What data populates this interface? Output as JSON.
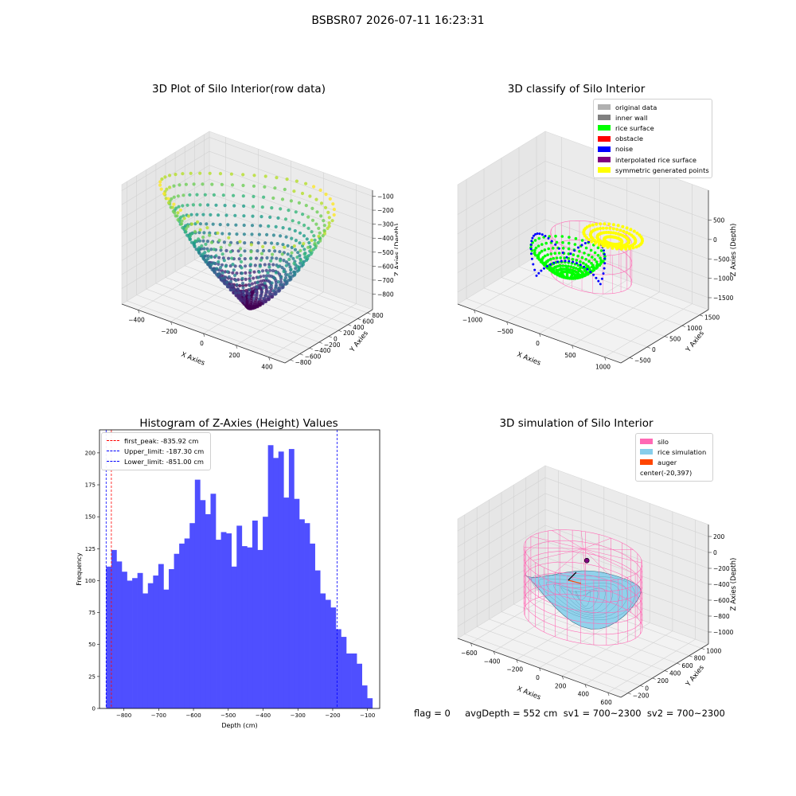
{
  "suptitle": "BSBSR07 2026-07-11 16:23:31",
  "chart_data": [
    {
      "type": "scatter",
      "title": "3D Plot of Silo Interior(row data)",
      "xlabel": "X Axies",
      "ylabel": "Y Axies",
      "zlabel": "Z Axies (Depth)",
      "xticks": [
        "−400",
        "−200",
        "0",
        "200",
        "400"
      ],
      "yticks": [
        "−800",
        "−600",
        "−400",
        "−200",
        "0",
        "200",
        "400",
        "600",
        "800"
      ],
      "zticks": [
        "−800",
        "−700",
        "−600",
        "−500",
        "−400",
        "−300",
        "−200",
        "−100"
      ],
      "colormap": "viridis",
      "description_values": {
        "z_range": [
          -850,
          -100
        ]
      }
    },
    {
      "type": "scatter",
      "title": "3D classify of Silo Interior",
      "xlabel": "X Axies",
      "ylabel": "Y Axies",
      "zlabel": "Z Axies (Depth)",
      "xticks": [
        "−1000",
        "−500",
        "0",
        "500",
        "1000"
      ],
      "yticks": [
        "−500",
        "0",
        "500",
        "1000",
        "1500"
      ],
      "zticks": [
        "−1500",
        "−1000",
        "−500",
        "0",
        "500"
      ],
      "legend": [
        {
          "label": "original data",
          "color": "#b0b0b0"
        },
        {
          "label": "inner wall",
          "color": "#808080"
        },
        {
          "label": "rice surface",
          "color": "#00ff00"
        },
        {
          "label": "obstacle",
          "color": "#ff0000"
        },
        {
          "label": "noise",
          "color": "#0000ff"
        },
        {
          "label": "interpolated rice surface",
          "color": "#800080"
        },
        {
          "label": "symmetric generated points",
          "color": "#ffff00"
        }
      ]
    },
    {
      "type": "bar",
      "title": "Histogram of Z-Axies (Height) Values",
      "xlabel": "Depth (cm)",
      "ylabel": "Frequency",
      "xlim": [
        -870,
        -65
      ],
      "ylim": [
        0,
        218
      ],
      "xticks": [
        -800,
        -700,
        -600,
        -500,
        -400,
        -300,
        -200,
        -100
      ],
      "yticks": [
        0,
        25,
        50,
        75,
        100,
        125,
        150,
        175,
        200
      ],
      "bin_start": -851,
      "bin_width": 15,
      "color": "#4b4bff",
      "values": [
        111,
        124,
        115,
        107,
        100,
        102,
        106,
        90,
        98,
        104,
        113,
        93,
        109,
        121,
        129,
        133,
        145,
        179,
        163,
        152,
        168,
        132,
        138,
        137,
        111,
        143,
        127,
        126,
        147,
        124,
        150,
        206,
        196,
        201,
        165,
        203,
        164,
        148,
        145,
        129,
        108,
        90,
        85,
        79,
        62,
        56,
        43,
        43,
        35,
        18,
        8
      ],
      "vlines": [
        {
          "label": "first_peak: -835.92 cm",
          "x": -835.92,
          "color": "#ff0000"
        },
        {
          "label": "Upper_limit: -187.30 cm",
          "x": -187.3,
          "color": "#0000ff"
        },
        {
          "label": "Lower_limit: -851.00 cm",
          "x": -851.0,
          "color": "#0000ff"
        }
      ]
    },
    {
      "type": "surface",
      "title": "3D simulation of Silo Interior",
      "xlabel": "X Axies",
      "ylabel": "Y Axies",
      "zlabel": "Z Axies (Depth)",
      "xticks": [
        "−600",
        "−400",
        "−200",
        "0",
        "200",
        "400",
        "600"
      ],
      "yticks": [
        "−200",
        "0",
        "200",
        "400",
        "600",
        "800",
        "1000"
      ],
      "zticks": [
        "−1000",
        "−800",
        "−600",
        "−400",
        "−200",
        "0",
        "200"
      ],
      "legend": [
        {
          "label": "silo",
          "color": "#ff69b4"
        },
        {
          "label": "rice simulation",
          "color": "#87ceeb"
        },
        {
          "label": "auger",
          "color": "#ff4500"
        },
        {
          "label": "center(-20,397)",
          "color": ""
        }
      ]
    }
  ],
  "bottom_text": "flag = 0     avgDepth = 552 cm  sv1 = 700~2300  sv2 = 700~2300"
}
